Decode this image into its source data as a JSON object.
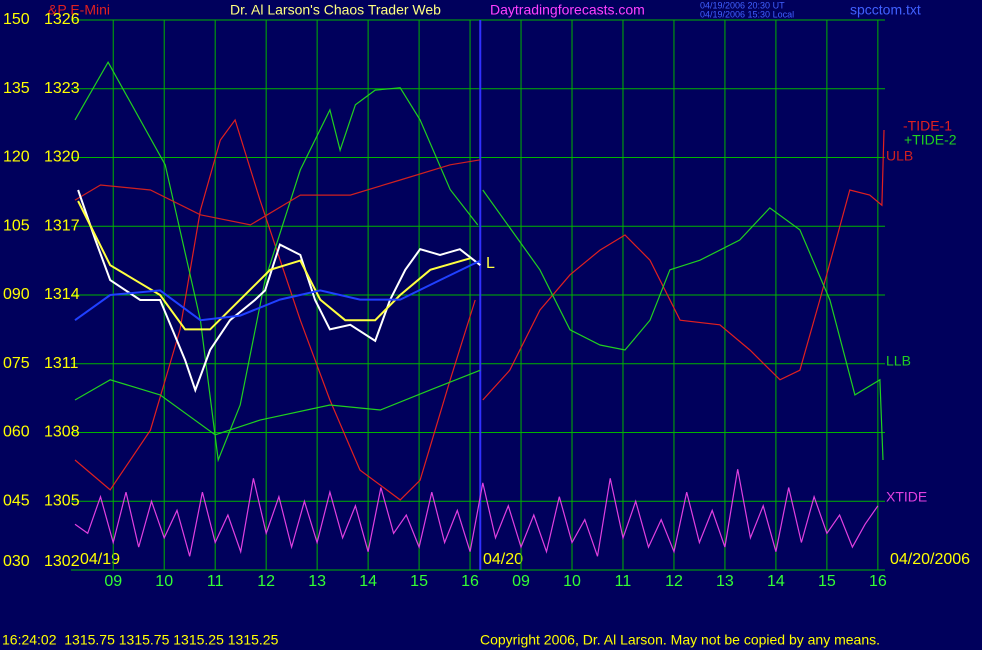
{
  "chart_data": {
    "type": "line",
    "title": "Dr. Al Larson's Chaos Trader Web",
    "subtitle": "&P E-Mini",
    "site": "Daytradingforecasts.com",
    "timestamps": [
      "04/19/2006 20:30 UT",
      "04/19/2006 15:30 Local"
    ],
    "filename": "spcctom.txt",
    "status": "16:24:02  1315.75 1315.75 1315.25 1315.25",
    "copyright": "Copyright 2006, Dr. Al Larson. May not be copied by any means.",
    "date_labels": [
      "04/19",
      "04/20",
      "04/20/2006"
    ],
    "annotation": "L",
    "grid": true,
    "grid_color": "#00b400",
    "divider_x": 7.2,
    "divider_color": "#3030ff",
    "xlim": [
      -0.75,
      15.14
    ],
    "xticks": [
      {
        "value": 0,
        "label": "09"
      },
      {
        "value": 1,
        "label": "10"
      },
      {
        "value": 2,
        "label": "11"
      },
      {
        "value": 3,
        "label": "12"
      },
      {
        "value": 4,
        "label": "13"
      },
      {
        "value": 5,
        "label": "14"
      },
      {
        "value": 6,
        "label": "15"
      },
      {
        "value": 7,
        "label": "16"
      },
      {
        "value": 8,
        "label": "09"
      },
      {
        "value": 9,
        "label": "10"
      },
      {
        "value": 10,
        "label": "11"
      },
      {
        "value": 11,
        "label": "12"
      },
      {
        "value": 12,
        "label": "13"
      },
      {
        "value": 13,
        "label": "14"
      },
      {
        "value": 14,
        "label": "15"
      },
      {
        "value": 15,
        "label": "16"
      }
    ],
    "ylim": [
      30,
      150
    ],
    "yticks": [
      150,
      135,
      120,
      105,
      {
        "value": 90,
        "label": "090"
      },
      {
        "value": 75,
        "label": "075"
      },
      {
        "value": 60,
        "label": "060"
      },
      {
        "value": 45,
        "label": "045"
      },
      {
        "value": 30,
        "label": "030"
      }
    ],
    "y2lim": [
      1302,
      1326
    ],
    "y2ticks": [
      1326,
      1323,
      1320,
      1317,
      1314,
      1311,
      1308,
      1305,
      1302
    ],
    "series": [
      {
        "name": "-TIDE-1",
        "color": "#e02020",
        "x": [
          -0.75,
          -0.06,
          0.73,
          1.31,
          1.71,
          2.1,
          2.39,
          2.88,
          3.67,
          4.25,
          4.84,
          5.63,
          6.02,
          6.61,
          7.1,
          7.2,
          7.25,
          7.78,
          8.37,
          8.96,
          9.55,
          10.04,
          10.53,
          11.12,
          11.9,
          12.49,
          13.08,
          13.47,
          13.86,
          14.45,
          14.84,
          15.08,
          15.12
        ],
        "values": [
          54.0,
          47.5,
          60.5,
          82.4,
          108.5,
          123.8,
          128.2,
          110.7,
          84.5,
          67.1,
          51.8,
          45.3,
          49.6,
          71.5,
          88.9,
          null,
          67.1,
          73.6,
          86.7,
          94.4,
          99.8,
          103.1,
          97.6,
          84.5,
          83.5,
          78.0,
          71.5,
          73.6,
          88.9,
          112.9,
          111.8,
          109.6,
          126.0
        ]
      },
      {
        "name": "+TIDE-2",
        "color": "#20d020",
        "x": [
          -0.75,
          -0.1,
          1.02,
          1.71,
          2.06,
          2.49,
          2.98,
          3.67,
          4.25,
          4.45,
          4.75,
          5.14,
          5.63,
          6.02,
          6.61,
          7.15,
          7.2,
          7.25,
          8.37,
          8.96,
          9.55,
          10.04,
          10.53,
          10.92,
          11.51,
          12.29,
          12.88,
          13.47,
          14.06,
          14.55,
          15.04,
          15.1
        ],
        "values": [
          128.2,
          140.8,
          118.4,
          84.5,
          54.0,
          66.0,
          93.3,
          117.3,
          130.4,
          121.6,
          131.5,
          134.7,
          135.2,
          128.2,
          113.0,
          105.3,
          null,
          112.9,
          95.5,
          82.4,
          79.1,
          78.0,
          84.5,
          95.5,
          97.6,
          102.0,
          109.0,
          104.2,
          88.9,
          68.2,
          71.5,
          54.0
        ]
      },
      {
        "name": "ULB",
        "color": "#d02020",
        "x": [
          -0.75,
          -0.25,
          0.73,
          1.71,
          2.69,
          3.67,
          4.65,
          5.63,
          6.61,
          7.2
        ],
        "values": [
          110.7,
          114.0,
          112.9,
          107.5,
          105.3,
          111.8,
          111.8,
          115.1,
          118.4,
          119.5
        ]
      },
      {
        "name": "LLB",
        "color": "#20d020",
        "x": [
          -0.75,
          -0.06,
          0.92,
          2.0,
          2.88,
          4.25,
          5.24,
          6.22,
          7.2
        ],
        "values": [
          67.1,
          71.5,
          68.2,
          59.5,
          62.7,
          66.0,
          64.9,
          69.3,
          73.6
        ]
      },
      {
        "name": "XTIDE",
        "color": "#e040e0",
        "x": [
          -0.75,
          -0.5,
          -0.25,
          0,
          0.25,
          0.5,
          0.75,
          1,
          1.25,
          1.5,
          1.75,
          2,
          2.25,
          2.5,
          2.75,
          3,
          3.25,
          3.5,
          3.75,
          4,
          4.25,
          4.5,
          4.75,
          5,
          5.25,
          5.5,
          5.75,
          6,
          6.25,
          6.5,
          6.75,
          7,
          7.25,
          7.5,
          7.75,
          8,
          8.25,
          8.5,
          8.75,
          9,
          9.25,
          9.5,
          9.75,
          10,
          10.25,
          10.5,
          10.75,
          11,
          11.25,
          11.5,
          11.75,
          12,
          12.25,
          12.5,
          12.75,
          13,
          13.25,
          13.5,
          13.75,
          14,
          14.25,
          14.5,
          14.75,
          15
        ],
        "values": [
          40,
          38,
          46,
          36,
          47,
          35,
          45,
          37,
          43,
          33,
          47,
          36,
          42,
          34,
          50,
          38,
          46,
          35,
          45,
          36,
          47,
          37,
          44,
          34,
          48,
          38,
          42,
          35,
          47,
          36,
          43,
          34,
          49,
          37,
          44,
          35,
          42,
          34,
          46,
          36,
          41,
          33,
          50,
          37,
          45,
          35,
          41,
          34,
          47,
          36,
          43,
          35,
          52,
          37,
          44,
          34,
          48,
          36,
          46,
          38,
          42,
          35,
          40,
          44
        ]
      },
      {
        "color": "#ffffff",
        "axis": "y2",
        "x": [
          -0.69,
          -0.35,
          -0.06,
          0.53,
          0.92,
          1.41,
          1.61,
          1.9,
          2.29,
          2.78,
          2.98,
          3.27,
          3.67,
          3.96,
          4.25,
          4.65,
          5.14,
          5.43,
          5.73,
          6.02,
          6.41,
          6.8,
          7.2
        ],
        "values": [
          1318.58,
          1316.4,
          1314.65,
          1313.78,
          1313.78,
          1311.16,
          1309.85,
          1311.6,
          1312.9,
          1313.78,
          1314.2,
          1316.2,
          1315.75,
          1313.78,
          1312.5,
          1312.7,
          1312.0,
          1313.78,
          1315.1,
          1316.0,
          1315.75,
          1316.0,
          1315.3
        ]
      },
      {
        "color": "#ffff40",
        "axis": "y2",
        "x": [
          -0.69,
          -0.06,
          0.92,
          1.41,
          1.9,
          2.49,
          3.08,
          3.67,
          4.06,
          4.55,
          5.14,
          5.63,
          6.22,
          7.0
        ],
        "values": [
          1318.1,
          1315.3,
          1314.0,
          1312.5,
          1312.5,
          1313.8,
          1315.1,
          1315.5,
          1313.8,
          1312.9,
          1312.9,
          1314.0,
          1315.1,
          1315.6
        ]
      },
      {
        "color": "#2040ff",
        "axis": "y2",
        "x": [
          -0.75,
          -0.06,
          0.92,
          1.71,
          2.49,
          3.27,
          4.06,
          4.84,
          5.63,
          6.41,
          7.2
        ],
        "values": [
          1312.9,
          1314.0,
          1314.2,
          1312.9,
          1313.1,
          1313.8,
          1314.2,
          1313.8,
          1313.8,
          1314.65,
          1315.5
        ]
      }
    ]
  }
}
